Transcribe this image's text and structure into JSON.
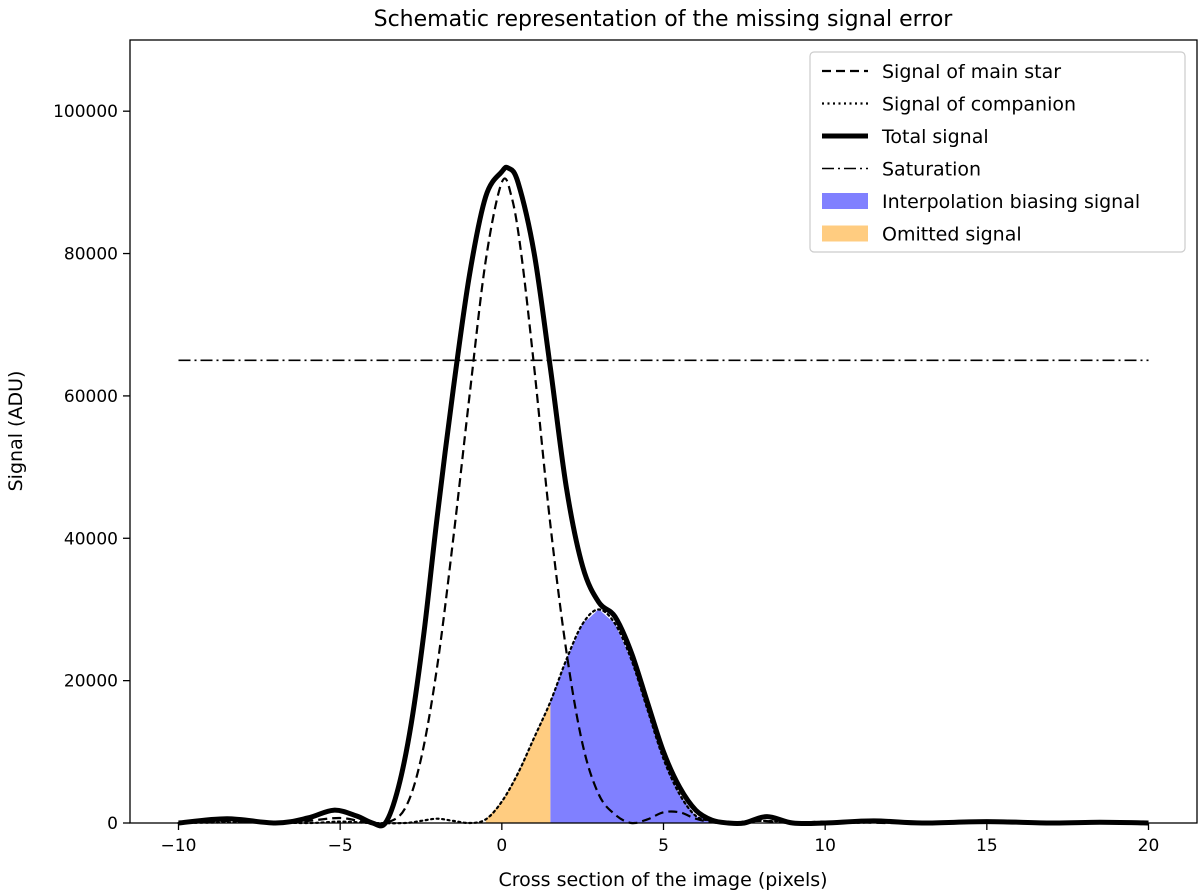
{
  "chart_data": {
    "type": "line",
    "title": "Schematic representation of the missing signal error",
    "xlabel": "Cross section of the image (pixels)",
    "ylabel": "Signal (ADU)",
    "xlim": [
      -11.5,
      21.5
    ],
    "ylim": [
      0,
      110000
    ],
    "xticks": [
      -10,
      -5,
      0,
      5,
      10,
      15,
      20
    ],
    "xtick_labels": [
      "−10",
      "−5",
      "0",
      "5",
      "10",
      "15",
      "20"
    ],
    "yticks": [
      0,
      20000,
      40000,
      60000,
      80000,
      100000
    ],
    "ytick_labels": [
      "0",
      "20000",
      "40000",
      "60000",
      "80000",
      "100000"
    ],
    "grid": false,
    "legend_position": "top-right",
    "series": [
      {
        "name": "Signal of main star",
        "style": "dashed",
        "x": [
          -10,
          -8.5,
          -7,
          -6,
          -5,
          -4.2,
          -3.6,
          -3,
          -2.5,
          -2,
          -1.5,
          -1,
          -0.5,
          0,
          0.3,
          0.6,
          1,
          1.5,
          2,
          2.5,
          3,
          3.5,
          4,
          4.5,
          5,
          5.5,
          6,
          6.5,
          7,
          8,
          9,
          10,
          12,
          14,
          16,
          18,
          20
        ],
        "y": [
          0,
          300,
          0,
          300,
          700,
          100,
          0,
          2000,
          9000,
          22000,
          40000,
          60000,
          79000,
          90000,
          88000,
          80000,
          64000,
          42000,
          24000,
          11000,
          4000,
          1200,
          0,
          500,
          1500,
          1500,
          600,
          100,
          0,
          300,
          0,
          200,
          0,
          100,
          0,
          100,
          0
        ]
      },
      {
        "name": "Signal of companion",
        "style": "dotted",
        "x": [
          -10,
          -8,
          -6,
          -5,
          -4,
          -3,
          -2.5,
          -2,
          -1.5,
          -1,
          -0.5,
          0,
          0.5,
          1,
          1.5,
          2,
          2.5,
          3,
          3.5,
          4,
          4.5,
          5,
          5.5,
          6,
          6.5,
          7,
          8,
          10,
          12,
          14,
          16,
          18,
          20
        ],
        "y": [
          0,
          100,
          0,
          200,
          0,
          0,
          300,
          600,
          300,
          0,
          500,
          3000,
          7000,
          12000,
          17000,
          23000,
          28000,
          30000,
          28000,
          23000,
          16000,
          9000,
          4000,
          1000,
          300,
          0,
          300,
          0,
          100,
          0,
          100,
          0,
          0
        ]
      },
      {
        "name": "Total signal",
        "style": "solid-thick",
        "x": [
          -10,
          -8.5,
          -7,
          -6,
          -5.2,
          -4.5,
          -4,
          -3.6,
          -3.2,
          -2.8,
          -2.4,
          -2,
          -1.5,
          -1,
          -0.5,
          0,
          0.2,
          0.5,
          1,
          1.5,
          2,
          2.5,
          3,
          3.5,
          4,
          4.5,
          5,
          5.5,
          6,
          6.5,
          7,
          7.5,
          8.2,
          9,
          10,
          11.5,
          13,
          15,
          17,
          18.5,
          20
        ],
        "y": [
          0,
          600,
          0,
          700,
          1800,
          1000,
          0,
          0,
          5000,
          14000,
          27000,
          43000,
          61000,
          77000,
          88000,
          91500,
          92000,
          90000,
          80000,
          64000,
          47000,
          36000,
          31000,
          29000,
          24000,
          17000,
          10000,
          5000,
          1800,
          400,
          0,
          0,
          900,
          0,
          0,
          300,
          0,
          200,
          0,
          100,
          0
        ]
      },
      {
        "name": "Saturation",
        "style": "dashdot",
        "x": [
          -10,
          20
        ],
        "y": [
          65000,
          65000
        ]
      }
    ],
    "filled_regions": [
      {
        "name": "Interpolation biasing signal",
        "color": "#8080ff",
        "x_range": [
          1.5,
          6.5
        ]
      },
      {
        "name": "Omitted signal",
        "color": "#ffcc80",
        "x_range": [
          -0.5,
          1.5
        ]
      }
    ]
  }
}
